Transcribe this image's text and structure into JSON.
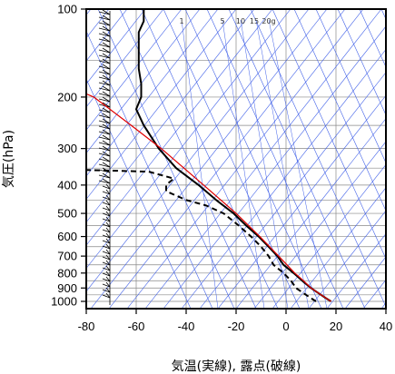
{
  "chart_data": {
    "type": "line",
    "subtype": "skew-t log-p (エマグラム)",
    "xlabel": "気温(実線), 露点(破線)",
    "ylabel": "気圧(hPa)",
    "x_ticks": [
      -80,
      -60,
      -40,
      -20,
      0,
      20,
      40
    ],
    "y_ticks": [
      1000,
      900,
      800,
      700,
      600,
      500,
      400,
      300,
      200,
      100
    ],
    "xlim": [
      -80,
      40
    ],
    "ylim": [
      1050,
      100
    ],
    "y_scale": "log",
    "grid": true,
    "mixing_ratio_labels": [
      "1",
      "5",
      "10",
      "15",
      "20g"
    ],
    "series": [
      {
        "style": "solid",
        "color": "#000000",
        "points": [
          {
            "p": 1000,
            "t": 18
          },
          {
            "p": 975,
            "t": 16
          },
          {
            "p": 950,
            "t": 14
          },
          {
            "p": 925,
            "t": 12
          },
          {
            "p": 900,
            "t": 10
          },
          {
            "p": 850,
            "t": 6.5
          },
          {
            "p": 800,
            "t": 3
          },
          {
            "p": 750,
            "t": -1
          },
          {
            "p": 700,
            "t": -3.5
          },
          {
            "p": 650,
            "t": -7
          },
          {
            "p": 600,
            "t": -11
          },
          {
            "p": 550,
            "t": -16
          },
          {
            "p": 500,
            "t": -21
          },
          {
            "p": 450,
            "t": -28
          },
          {
            "p": 400,
            "t": -35
          },
          {
            "p": 350,
            "t": -44
          },
          {
            "p": 300,
            "t": -51
          },
          {
            "p": 250,
            "t": -57
          },
          {
            "p": 220,
            "t": -60
          },
          {
            "p": 200,
            "t": -58
          },
          {
            "p": 180,
            "t": -58
          },
          {
            "p": 160,
            "t": -59
          },
          {
            "p": 140,
            "t": -59
          },
          {
            "p": 120,
            "t": -59
          },
          {
            "p": 110,
            "t": -57
          },
          {
            "p": 100,
            "t": -57
          }
        ]
      },
      {
        "style": "dashed",
        "color": "#000000",
        "points": [
          {
            "p": 1000,
            "t": 12
          },
          {
            "p": 975,
            "t": 10
          },
          {
            "p": 950,
            "t": 8
          },
          {
            "p": 925,
            "t": 6
          },
          {
            "p": 900,
            "t": 4
          },
          {
            "p": 850,
            "t": 2
          },
          {
            "p": 800,
            "t": -1
          },
          {
            "p": 750,
            "t": -5
          },
          {
            "p": 700,
            "t": -7
          },
          {
            "p": 650,
            "t": -10
          },
          {
            "p": 600,
            "t": -14
          },
          {
            "p": 550,
            "t": -19
          },
          {
            "p": 500,
            "t": -25
          },
          {
            "p": 470,
            "t": -32
          },
          {
            "p": 450,
            "t": -40
          },
          {
            "p": 420,
            "t": -48
          },
          {
            "p": 400,
            "t": -48
          },
          {
            "p": 380,
            "t": -45
          },
          {
            "p": 360,
            "t": -55
          },
          {
            "p": 355,
            "t": -80
          }
        ]
      },
      {
        "style": "solid",
        "color": "#e00000",
        "points": [
          {
            "p": 1000,
            "t": 18
          },
          {
            "p": 950,
            "t": 14
          },
          {
            "p": 900,
            "t": 10
          },
          {
            "p": 850,
            "t": 7
          },
          {
            "p": 800,
            "t": 3.5
          },
          {
            "p": 700,
            "t": -3
          },
          {
            "p": 600,
            "t": -10.5
          },
          {
            "p": 500,
            "t": -20
          },
          {
            "p": 400,
            "t": -33
          },
          {
            "p": 300,
            "t": -50
          },
          {
            "p": 250,
            "t": -62
          },
          {
            "p": 200,
            "t": -77
          },
          {
            "p": 195,
            "t": -80
          }
        ]
      }
    ]
  }
}
